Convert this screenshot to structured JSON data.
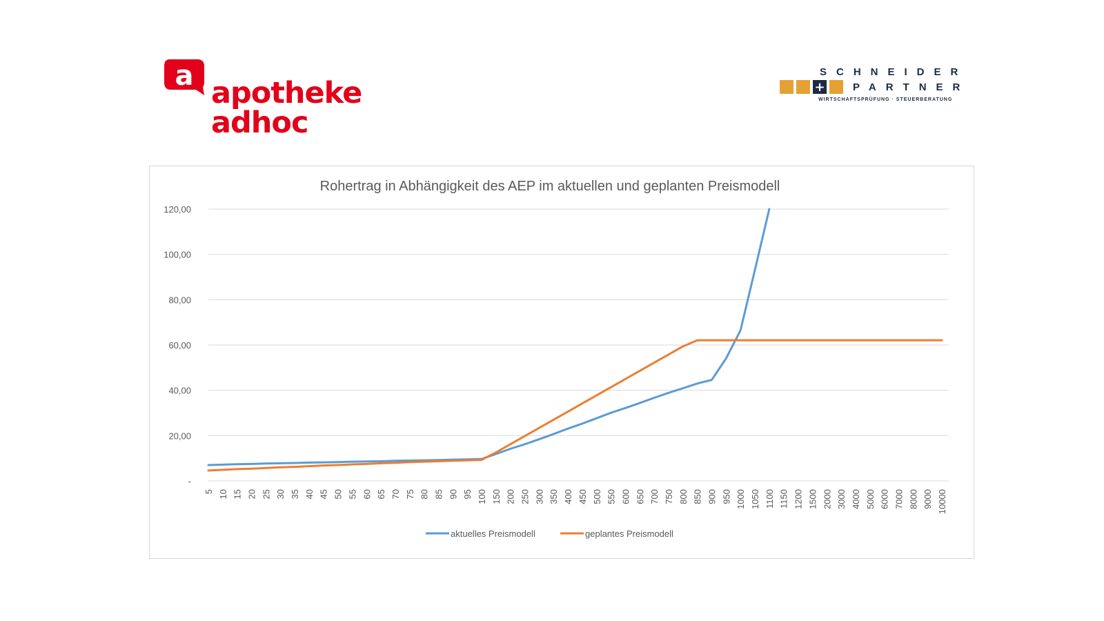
{
  "logos": {
    "left": {
      "text": "apotheke adhoc",
      "mark_letter": "a",
      "color": "#e2001a"
    },
    "right": {
      "line1": "SCHNEIDER",
      "line2": "PARTNER",
      "line3": "WIRTSCHAFTSPRÜFUNG · STEUERBERATUNG",
      "plus": "+",
      "square_color": "#e6a135",
      "text_color": "#1f2a44"
    }
  },
  "chart_data": {
    "type": "line",
    "title": "Rohertrag in Abhängigkeit des AEP  im aktuellen und geplanten Preismodell",
    "xlabel": "",
    "ylabel": "",
    "ylim": [
      0,
      120
    ],
    "yticks": [
      0,
      20,
      40,
      60,
      80,
      100,
      120
    ],
    "ytick_labels": [
      "-",
      "20,00",
      "40,00",
      "60,00",
      "80,00",
      "100,00",
      "120,00"
    ],
    "grid": true,
    "legend": "bottom",
    "categories": [
      "5",
      "10",
      "15",
      "20",
      "25",
      "30",
      "35",
      "40",
      "45",
      "50",
      "55",
      "60",
      "65",
      "70",
      "75",
      "80",
      "85",
      "90",
      "95",
      "100",
      "150",
      "200",
      "250",
      "300",
      "350",
      "400",
      "450",
      "500",
      "550",
      "600",
      "650",
      "700",
      "750",
      "800",
      "850",
      "900",
      "950",
      "1000",
      "1050",
      "1100",
      "1150",
      "1200",
      "1500",
      "2000",
      "3000",
      "4000",
      "5000",
      "6000",
      "7000",
      "8000",
      "9000",
      "10000"
    ],
    "series": [
      {
        "name": "aktuelles Preismodell",
        "color": "#5b9bd5",
        "values": [
          7.0,
          7.2,
          7.4,
          7.5,
          7.7,
          7.8,
          7.9,
          8.1,
          8.2,
          8.3,
          8.5,
          8.6,
          8.7,
          8.9,
          9.0,
          9.1,
          9.2,
          9.4,
          9.5,
          9.7,
          11.9,
          14.2,
          16.2,
          18.4,
          20.7,
          23.1,
          25.3,
          27.7,
          30.1,
          32.2,
          34.4,
          36.7,
          38.9,
          40.9,
          43.0,
          44.6,
          54.1,
          66.5,
          93.1,
          120.0,
          null,
          null,
          null,
          null,
          null,
          null,
          null,
          null,
          null,
          null,
          null,
          null
        ]
      },
      {
        "name": "geplantes Preismodell",
        "color": "#ed7d31",
        "values": [
          4.6,
          4.9,
          5.2,
          5.4,
          5.7,
          6.0,
          6.2,
          6.5,
          6.8,
          7.0,
          7.3,
          7.5,
          7.8,
          8.0,
          8.3,
          8.5,
          8.7,
          8.9,
          9.1,
          9.3,
          12.6,
          16.2,
          19.8,
          23.4,
          27.0,
          30.6,
          34.2,
          37.8,
          41.4,
          45.0,
          48.6,
          52.2,
          55.8,
          59.4,
          62.1,
          62.1,
          62.1,
          62.1,
          62.1,
          62.1,
          62.1,
          62.1,
          62.1,
          62.1,
          62.1,
          62.1,
          62.1,
          62.1,
          62.1,
          62.1,
          62.1,
          62.1
        ]
      }
    ]
  }
}
